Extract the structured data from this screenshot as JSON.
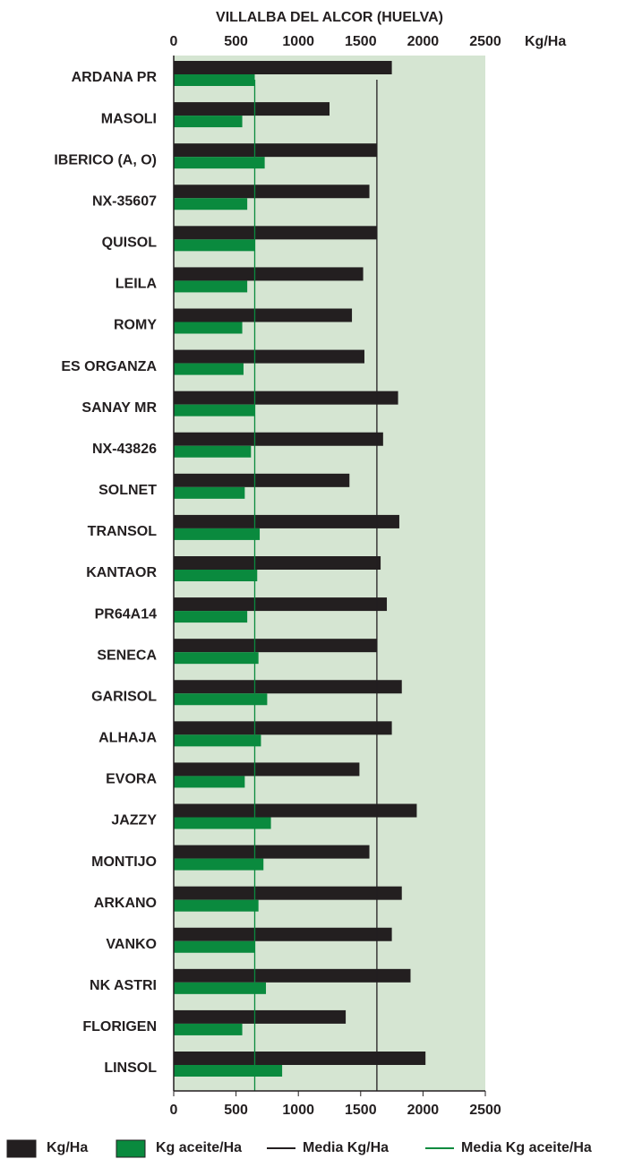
{
  "chart_data": {
    "type": "bar",
    "orientation": "horizontal",
    "title": "VILLALBA DEL ALCOR (HUELVA)",
    "xlabel": "Kg/Ha",
    "categories": [
      "ARDANA PR",
      "MASOLI",
      "IBERICO (A, O)",
      "NX-35607",
      "QUISOL",
      "LEILA",
      "ROMY",
      "ES ORGANZA",
      "SANAY MR",
      "NX-43826",
      "SOLNET",
      "TRANSOL",
      "KANTAOR",
      "PR64A14",
      "SENECA",
      "GARISOL",
      "ALHAJA",
      "EVORA",
      "JAZZY",
      "MONTIJO",
      "ARKANO",
      "VANKO",
      "NK ASTRI",
      "FLORIGEN",
      "LINSOL"
    ],
    "series": [
      {
        "name": "Kg/Ha",
        "color": "#231f20",
        "values": [
          1750,
          1250,
          1630,
          1570,
          1630,
          1520,
          1430,
          1530,
          1800,
          1680,
          1410,
          1810,
          1660,
          1710,
          1630,
          1830,
          1750,
          1490,
          1950,
          1570,
          1830,
          1750,
          1900,
          1380,
          2020
        ]
      },
      {
        "name": "Kg aceite/Ha",
        "color": "#0a8a3e",
        "values": [
          650,
          550,
          730,
          590,
          650,
          590,
          550,
          560,
          650,
          620,
          570,
          690,
          670,
          590,
          680,
          750,
          700,
          570,
          780,
          720,
          680,
          650,
          740,
          550,
          870
        ]
      }
    ],
    "reference_lines": [
      {
        "name": "Media Kg/Ha",
        "value": 1630,
        "color": "#231f20"
      },
      {
        "name": "Media Kg aceite/Ha",
        "value": 650,
        "color": "#0a8a3e"
      }
    ],
    "xlim": [
      0,
      2500
    ],
    "xticks": [
      0,
      500,
      1000,
      1500,
      2000,
      2500
    ],
    "legend": "bottom"
  }
}
